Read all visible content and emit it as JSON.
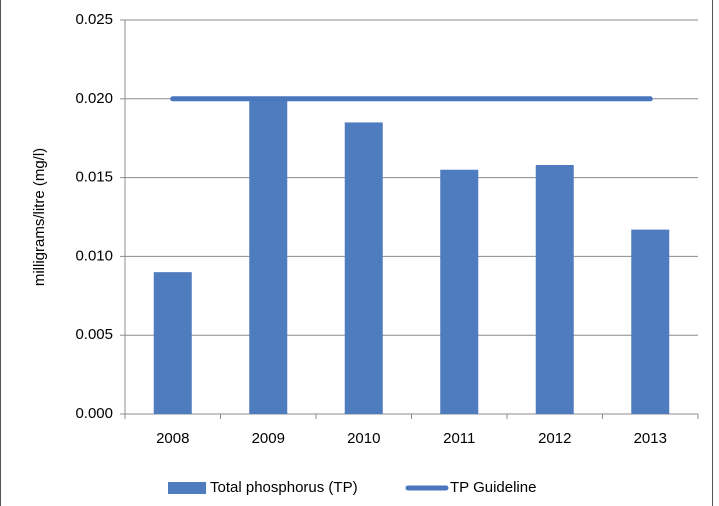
{
  "chart_data": {
    "type": "bar",
    "y_label": "milligrams/litre (mg/l)",
    "categories": [
      "2008",
      "2009",
      "2010",
      "2011",
      "2012",
      "2013"
    ],
    "series": [
      {
        "name": "Total phosphorus (TP)",
        "type": "bar",
        "color": "#4f7bbf",
        "values": [
          0.009,
          0.02,
          0.0185,
          0.0155,
          0.0158,
          0.0117
        ]
      },
      {
        "name": "TP Guideline",
        "type": "line",
        "color": "#4a76bd",
        "values": [
          0.02,
          0.02,
          0.02,
          0.02,
          0.02,
          0.02
        ]
      }
    ],
    "ylim": [
      0,
      0.025
    ],
    "yticks": [
      {
        "value": 0,
        "label": "0.000"
      },
      {
        "value": 0.005,
        "label": "0.005"
      },
      {
        "value": 0.01,
        "label": "0.010"
      },
      {
        "value": 0.015,
        "label": "0.015"
      },
      {
        "value": 0.02,
        "label": "0.020"
      },
      {
        "value": 0.025,
        "label": "0.025"
      }
    ],
    "grid": true,
    "legend": "bottom"
  }
}
